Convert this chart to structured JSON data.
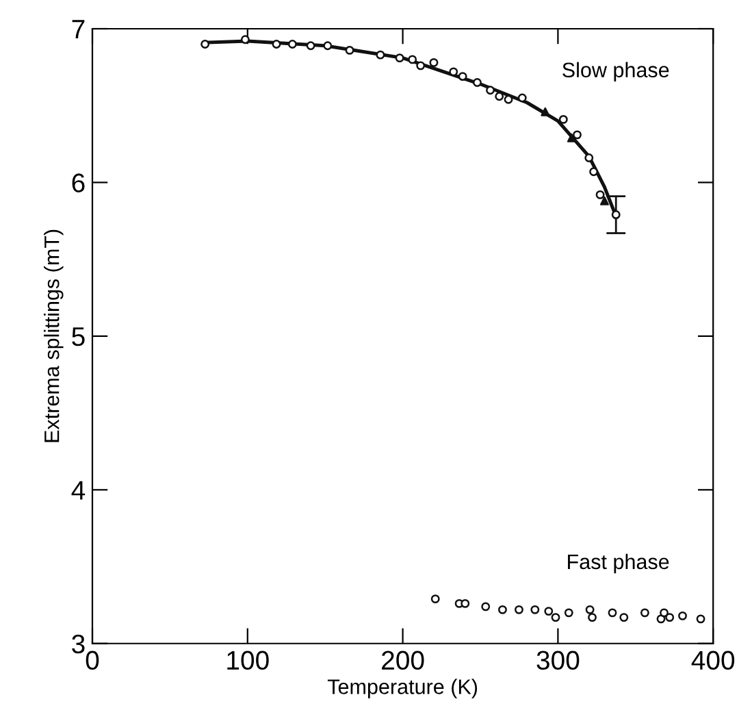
{
  "chart_data": {
    "type": "scatter",
    "xlabel": "Temperature (K)",
    "ylabel": "Extrema splittings (mT)",
    "xlim": [
      0,
      400
    ],
    "ylim": [
      3,
      7
    ],
    "xticks": [
      0,
      100,
      200,
      300,
      400
    ],
    "yticks": [
      3,
      4,
      5,
      6,
      7
    ],
    "grid": false,
    "legend": false,
    "series": [
      {
        "type": "line",
        "color": "#111111",
        "marker": "none",
        "line_style": "solid",
        "x": [
          72,
          100,
          150,
          200,
          250,
          280,
          300,
          320,
          330,
          337
        ],
        "values": [
          6.91,
          6.92,
          6.89,
          6.81,
          6.64,
          6.52,
          6.4,
          6.17,
          5.97,
          5.79
        ]
      },
      {
        "color": "#111111",
        "marker": "circle",
        "x": [
          72.6,
          98.5,
          118.6,
          128.9,
          140.7,
          151.6,
          165.8,
          185.6,
          198,
          206.2,
          211.5,
          220,
          232.7,
          238.6,
          248,
          256.4,
          262.2,
          268.1,
          277,
          303.5,
          312.4,
          320,
          323,
          327.2,
          337.4
        ],
        "values": [
          6.9,
          6.93,
          6.9,
          6.9,
          6.89,
          6.89,
          6.86,
          6.83,
          6.81,
          6.8,
          6.76,
          6.78,
          6.72,
          6.69,
          6.65,
          6.6,
          6.56,
          6.54,
          6.55,
          6.41,
          6.31,
          6.16,
          6.07,
          5.92,
          5.79
        ],
        "errors": [
          null,
          null,
          null,
          null,
          null,
          null,
          null,
          null,
          null,
          null,
          null,
          null,
          null,
          null,
          null,
          null,
          null,
          null,
          null,
          null,
          null,
          null,
          null,
          null,
          0.12
        ]
      },
      {
        "color": "#111111",
        "marker": "triangle",
        "x": [
          291.8,
          308.8,
          330
        ],
        "values": [
          6.46,
          6.29,
          5.88
        ]
      },
      {
        "color": "#111111",
        "marker": "circle",
        "x": [
          221,
          236.4,
          240.2,
          253.4,
          264.3,
          274.9,
          285.2,
          294,
          298.5,
          307,
          320.6,
          322.1,
          335.1,
          342.5,
          356,
          366.4,
          368.4,
          372,
          380.3,
          392
        ],
        "values": [
          3.29,
          3.26,
          3.26,
          3.24,
          3.22,
          3.22,
          3.22,
          3.21,
          3.17,
          3.2,
          3.22,
          3.17,
          3.2,
          3.17,
          3.2,
          3.16,
          3.2,
          3.17,
          3.18,
          3.16
        ]
      }
    ],
    "annotations": [
      "Slow phase",
      "Fast phase"
    ]
  }
}
